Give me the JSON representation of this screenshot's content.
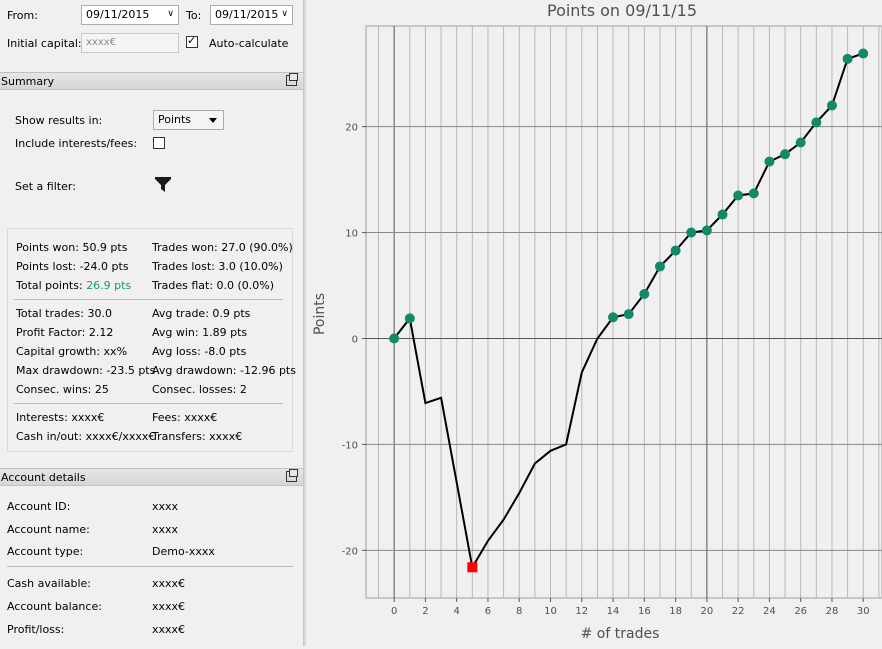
{
  "top": {
    "from_label": "From:",
    "from_value": "09/11/2015",
    "to_label": "To:",
    "to_value": "09/11/2015",
    "capital_label": "Initial capital:",
    "capital_placeholder": "xxxx€",
    "autocalc_label": "Auto-calculate",
    "autocalc_checked": true
  },
  "summary": {
    "title": "Summary",
    "show_results_label": "Show results in:",
    "show_results_value": "Points",
    "include_label": "Include interests/fees:",
    "filter_label": "Set a filter:",
    "stats": {
      "points_won": "Points won: 50.9 pts",
      "points_lost": "Points lost: -24.0 pts",
      "total_points_label": "Total points:",
      "total_points_value": "26.9 pts",
      "trades_won": "Trades won: 27.0 (90.0%)",
      "trades_lost": "Trades lost: 3.0 (10.0%)",
      "trades_flat": "Trades flat: 0.0 (0.0%)",
      "total_trades": "Total trades: 30.0",
      "profit_factor": "Profit Factor: 2.12",
      "capital_growth": "Capital growth: xx%",
      "max_drawdown": "Max drawdown: -23.5 pts",
      "consec_wins": "Consec. wins: 25",
      "avg_trade": "Avg trade: 0.9 pts",
      "avg_win": "Avg win: 1.89 pts",
      "avg_loss": "Avg loss: -8.0 pts",
      "avg_drawdown": "Avg drawdown: -12.96 pts",
      "consec_losses": "Consec. losses: 2",
      "interests": "Interests: xxxx€",
      "cash_inout": "Cash in/out: xxxx€/xxxx€",
      "fees": "Fees: xxxx€",
      "transfers": "Transfers: xxxx€"
    }
  },
  "account": {
    "title": "Account details",
    "id_label": "Account ID:",
    "id_value": "xxxx",
    "name_label": "Account name:",
    "name_value": "xxxx",
    "type_label": "Account type:",
    "type_value": "Demo-xxxx",
    "cash_label": "Cash available:",
    "cash_value": "xxxx€",
    "balance_label": "Account balance:",
    "balance_value": "xxxx€",
    "pl_label": "Profit/loss:",
    "pl_value": "xxxx€"
  },
  "chart_data": {
    "type": "line",
    "title": "Points on 09/11/15",
    "xlabel": "# of trades",
    "ylabel": "Points",
    "xlim": [
      -1.8,
      31.2
    ],
    "ylim": [
      -24.5,
      29.5
    ],
    "xticks": [
      0,
      2,
      4,
      6,
      8,
      10,
      12,
      14,
      16,
      18,
      20,
      22,
      24,
      26,
      28,
      30
    ],
    "yticks": [
      -20,
      -10,
      0,
      10,
      20
    ],
    "grid": true,
    "x": [
      0,
      1,
      2,
      3,
      4,
      5,
      6,
      7,
      8,
      9,
      10,
      11,
      12,
      13,
      14,
      15,
      16,
      17,
      18,
      19,
      20,
      21,
      22,
      23,
      24,
      25,
      26,
      27,
      28,
      29,
      30
    ],
    "y": [
      0,
      1.9,
      -6.1,
      -5.6,
      -13.6,
      -21.6,
      -19.1,
      -17.1,
      -14.6,
      -11.8,
      -10.6,
      -10.0,
      -3.2,
      0,
      2.0,
      2.3,
      4.2,
      6.8,
      8.3,
      10.0,
      10.2,
      11.7,
      13.5,
      13.7,
      16.7,
      17.4,
      18.5,
      20.4,
      22.0,
      26.4,
      26.9
    ],
    "series_color": "#000000",
    "marker_color": "#13896a",
    "min_marker_color": "#ff0000",
    "markers_at": [
      0,
      1,
      14,
      15,
      16,
      17,
      18,
      19,
      20,
      21,
      22,
      23,
      24,
      25,
      26,
      27,
      28,
      29,
      30
    ],
    "min_marker_at": 5
  }
}
